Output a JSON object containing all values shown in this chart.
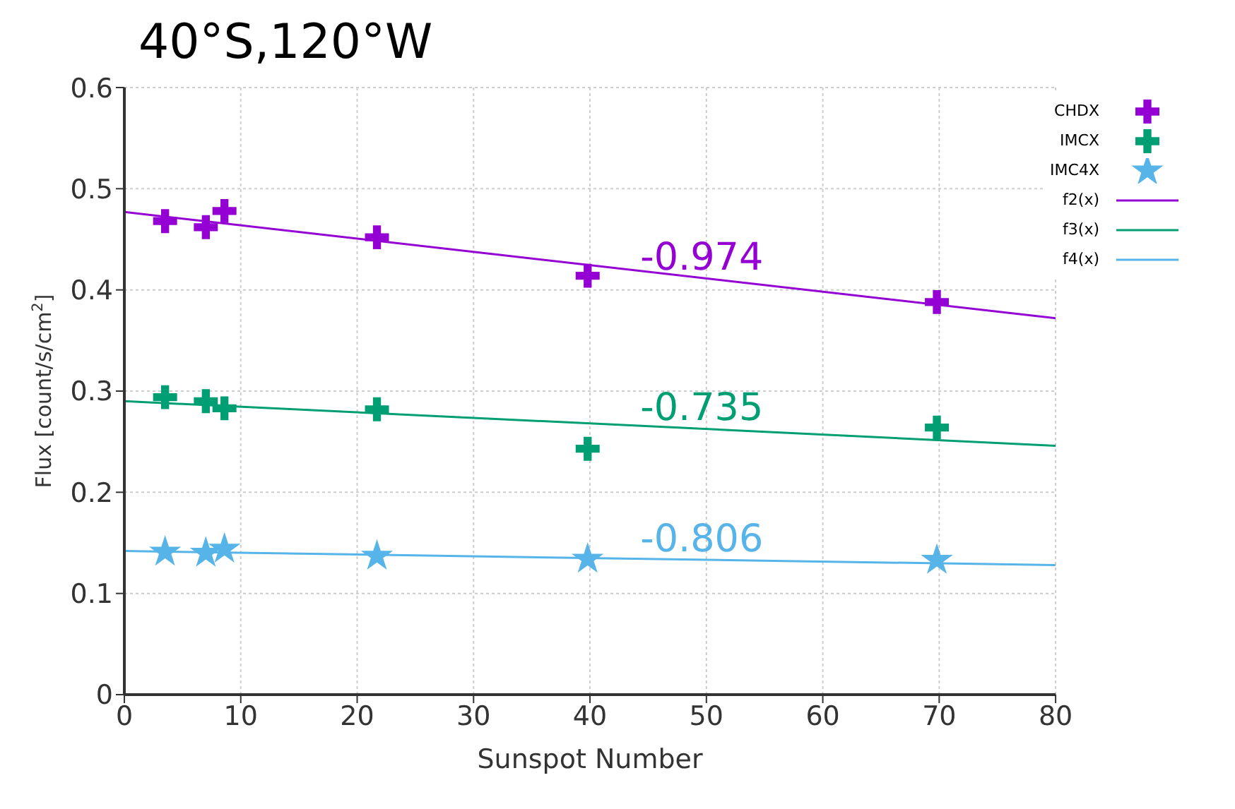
{
  "chart_data": {
    "type": "scatter",
    "title": "40°S,120°W",
    "xlabel": "Sunspot Number",
    "ylabel": "Flux [count/s/cm$^{2}$]",
    "xlim": [
      0,
      80
    ],
    "xticks": [
      0,
      10,
      20,
      30,
      40,
      50,
      60,
      70,
      80
    ],
    "ylim": [
      0,
      0.6
    ],
    "yticks": [
      0,
      0.1,
      0.2,
      0.3,
      0.4,
      0.5,
      0.6
    ],
    "grid": true,
    "legend": "top right",
    "series": [
      {
        "name": "CHDX",
        "type": "scatter",
        "marker": "cross",
        "color": "#9400d3",
        "x": [
          3.5,
          7,
          8.6,
          21.7,
          39.8,
          69.8
        ],
        "values": [
          0.468,
          0.462,
          0.478,
          0.452,
          0.414,
          0.388
        ]
      },
      {
        "name": "IMCX",
        "type": "scatter",
        "marker": "cross",
        "color": "#009e73",
        "x": [
          3.5,
          7,
          8.6,
          21.7,
          39.8,
          69.8
        ],
        "values": [
          0.294,
          0.29,
          0.283,
          0.282,
          0.243,
          0.264
        ]
      },
      {
        "name": "IMC4X",
        "type": "scatter",
        "marker": "star",
        "color": "#56b4e9",
        "x": [
          3.5,
          7,
          8.6,
          21.7,
          39.8,
          69.8
        ],
        "values": [
          0.141,
          0.14,
          0.144,
          0.137,
          0.134,
          0.133
        ]
      },
      {
        "name": "f2(x)",
        "type": "line",
        "marker": "none",
        "color": "#9400d3",
        "x": [
          0,
          80
        ],
        "values": [
          0.477,
          0.372
        ]
      },
      {
        "name": "f3(x)",
        "type": "line",
        "marker": "none",
        "color": "#009e73",
        "x": [
          0,
          80
        ],
        "values": [
          0.29,
          0.246
        ]
      },
      {
        "name": "f4(x)",
        "type": "line",
        "marker": "none",
        "color": "#56b4e9",
        "x": [
          0,
          80
        ],
        "values": [
          0.142,
          0.128
        ]
      }
    ],
    "annotations": [
      "-0.974",
      "-0.735",
      "-0.806"
    ]
  }
}
